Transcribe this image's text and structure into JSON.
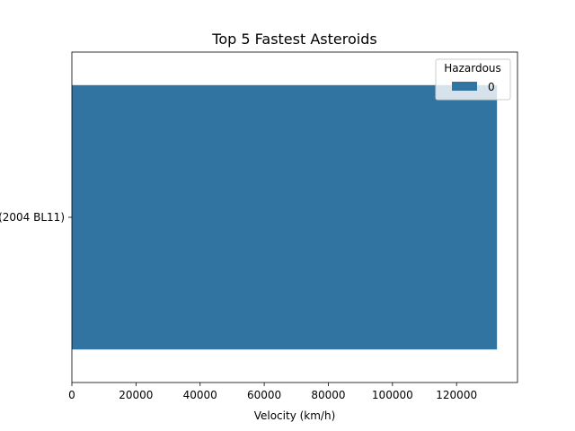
{
  "chart_data": {
    "type": "bar",
    "orientation": "horizontal",
    "title": "Top 5 Fastest Asteroids",
    "xlabel": "Velocity (km/h)",
    "ylabel": "",
    "categories": [
      "(2004 BL11)"
    ],
    "series": [
      {
        "name": "0",
        "values": [
          132600
        ],
        "color": "#3274a1"
      }
    ],
    "xlim": [
      0,
      139000
    ],
    "xticks": [
      0,
      20000,
      40000,
      60000,
      80000,
      100000,
      120000
    ],
    "legend": {
      "title": "Hazardous",
      "placement": "top-right"
    },
    "grid": false
  }
}
